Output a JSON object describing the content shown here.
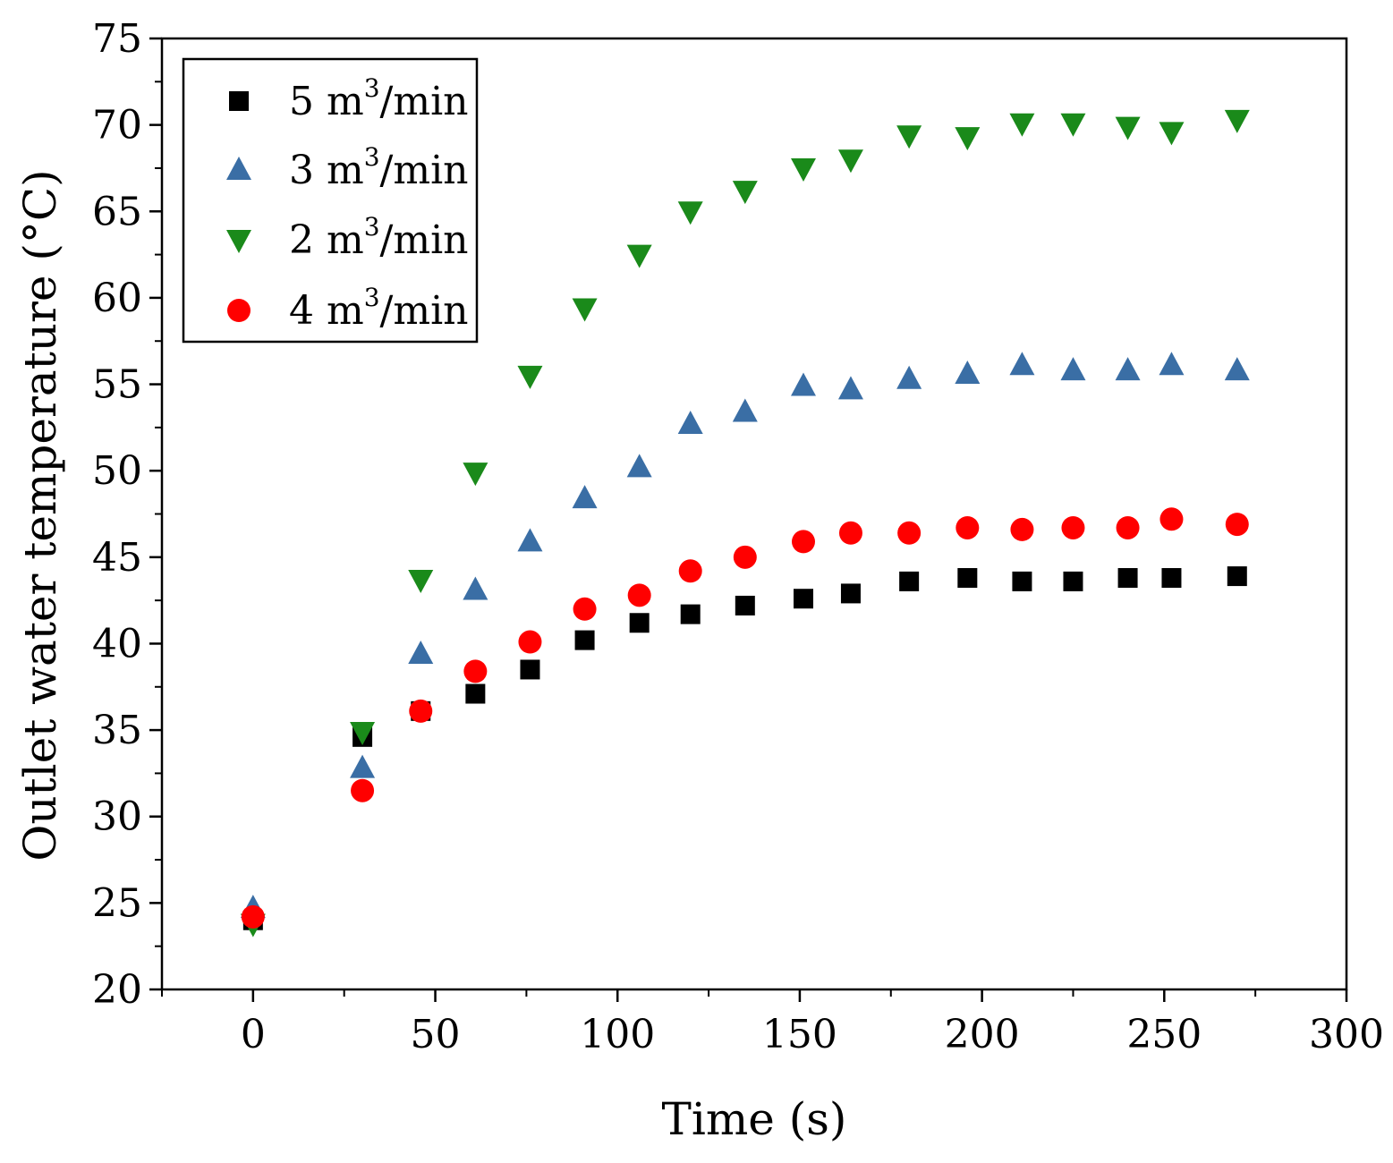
{
  "chart_data": {
    "type": "scatter",
    "title": "",
    "xlabel": "Time (s)",
    "ylabel": "Outlet water temperature (°C)",
    "xlim": [
      -25,
      300
    ],
    "ylim": [
      20,
      75
    ],
    "x_ticks": [
      0,
      50,
      100,
      150,
      200,
      250,
      300
    ],
    "x_tick_labels": [
      "0",
      "50",
      "100",
      "150",
      "200",
      "250",
      "300"
    ],
    "y_ticks": [
      20,
      25,
      30,
      35,
      40,
      45,
      50,
      55,
      60,
      65,
      70,
      75
    ],
    "y_tick_labels": [
      "20",
      "25",
      "30",
      "35",
      "40",
      "45",
      "50",
      "55",
      "60",
      "65",
      "70",
      "75"
    ],
    "grid": false,
    "legend_position": "top-left",
    "series": [
      {
        "name": "5 m3/min",
        "legend_number": "5 m",
        "legend_sup": "3",
        "legend_unit": "/min",
        "marker": "square",
        "color": "#000000",
        "x": [
          0,
          30,
          46,
          61,
          76,
          91,
          106,
          120,
          135,
          151,
          164,
          180,
          196,
          211,
          225,
          240,
          252,
          270
        ],
        "y": [
          24.0,
          34.6,
          36.1,
          37.1,
          38.5,
          40.2,
          41.2,
          41.7,
          42.2,
          42.6,
          42.9,
          43.6,
          43.8,
          43.6,
          43.6,
          43.8,
          43.8,
          43.9
        ]
      },
      {
        "name": "3 m3/min",
        "legend_number": "3 m",
        "legend_sup": "3",
        "legend_unit": "/min",
        "marker": "triangle-up",
        "color": "#3a6ea5",
        "x": [
          0,
          30,
          46,
          61,
          76,
          91,
          106,
          120,
          135,
          151,
          164,
          180,
          196,
          211,
          225,
          240,
          252,
          270
        ],
        "y": [
          24.7,
          32.8,
          39.4,
          43.1,
          45.9,
          48.4,
          50.2,
          52.7,
          53.4,
          54.9,
          54.7,
          55.3,
          55.6,
          56.1,
          55.8,
          55.8,
          56.1,
          55.8
        ]
      },
      {
        "name": "2 m3/min",
        "legend_number": "2 m",
        "legend_sup": "3",
        "legend_unit": "/min",
        "marker": "triangle-down",
        "color": "#1a8a1a",
        "x": [
          0,
          30,
          46,
          61,
          76,
          91,
          106,
          120,
          135,
          151,
          164,
          180,
          196,
          211,
          225,
          240,
          252,
          270
        ],
        "y": [
          23.8,
          34.9,
          43.7,
          49.9,
          55.5,
          59.4,
          62.5,
          65.0,
          66.2,
          67.5,
          68.0,
          69.4,
          69.3,
          70.1,
          70.1,
          69.9,
          69.6,
          70.3
        ]
      },
      {
        "name": "4 m3/min",
        "legend_number": "4 m",
        "legend_sup": "3",
        "legend_unit": "/min",
        "marker": "circle",
        "color": "#ff0000",
        "x": [
          0,
          30,
          46,
          61,
          76,
          91,
          106,
          120,
          135,
          151,
          164,
          180,
          196,
          211,
          225,
          240,
          252,
          270
        ],
        "y": [
          24.2,
          31.5,
          36.1,
          38.4,
          40.1,
          42.0,
          42.8,
          44.2,
          45.0,
          45.9,
          46.4,
          46.4,
          46.7,
          46.6,
          46.7,
          46.7,
          47.2,
          46.9
        ]
      }
    ]
  }
}
